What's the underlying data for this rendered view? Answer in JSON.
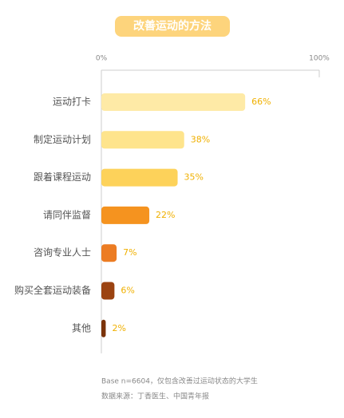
{
  "chart_data": {
    "type": "bar",
    "orientation": "horizontal",
    "title": "改善运动的方法",
    "categories": [
      "运动打卡",
      "制定运动计划",
      "跟着课程运动",
      "请同伴监督",
      "咨询专业人士",
      "购买全套运动装备",
      "其他"
    ],
    "values": [
      66,
      38,
      35,
      22,
      7,
      6,
      2
    ],
    "value_labels": [
      "66%",
      "38%",
      "35%",
      "22%",
      "7%",
      "6%",
      "2%"
    ],
    "colors": [
      "#feeaa6",
      "#fee48c",
      "#fdd25a",
      "#f5931f",
      "#ec7c23",
      "#9b4311",
      "#7a3209"
    ],
    "xlim": [
      0,
      100
    ],
    "xticks": [
      {
        "value": 0,
        "label": "0%"
      },
      {
        "value": 100,
        "label": "100%"
      }
    ],
    "notes": [
      "Base n=6604，仅包含改善过运动状态的大学生",
      "数据来源：丁香医生、中国青年报"
    ]
  }
}
